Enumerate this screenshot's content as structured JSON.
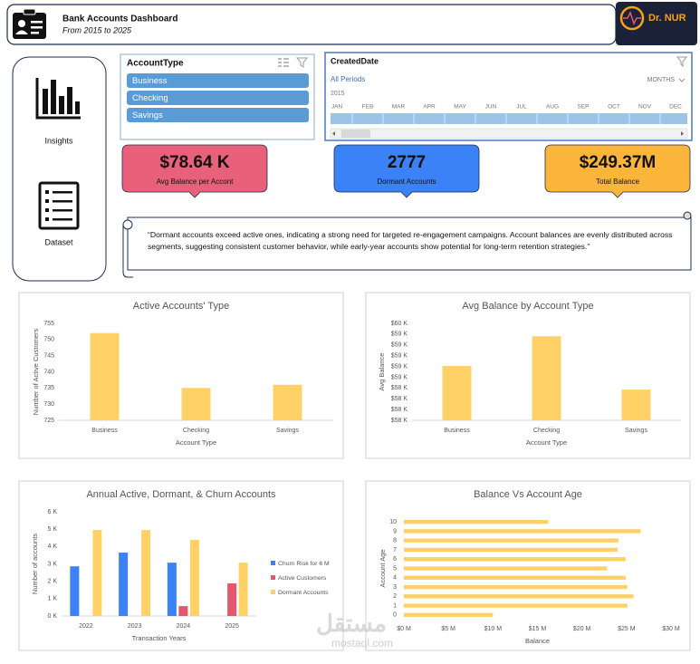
{
  "header": {
    "title": "Bank Accounts Dashboard",
    "subtitle": "From 2015 to 2025",
    "logo": "Dr. NUR"
  },
  "nav": {
    "items": [
      "Insights",
      "Dataset"
    ]
  },
  "slicer": {
    "title": "AccountType",
    "items": [
      "Business",
      "Checking",
      "Savings"
    ]
  },
  "timeline": {
    "title": "CreatedDate",
    "period": "All Periods",
    "level": "MONTHS",
    "year": "2015",
    "months": [
      "JAN",
      "FEB",
      "MAR",
      "APR",
      "MAY",
      "JUN",
      "JUL",
      "AUG",
      "SEP",
      "OCT",
      "NOV",
      "DEC"
    ]
  },
  "kpis": [
    {
      "value": "$78.64 K",
      "label": "Avg Balance per Accont",
      "color": "#e8607a"
    },
    {
      "value": "2777",
      "label": "Dormant Accounts",
      "color": "#3b82f6"
    },
    {
      "value": "$249.37M",
      "label": "Total Balance",
      "color": "#fbb53a"
    }
  ],
  "note": "“Dormant accounts exceed active ones, indicating a strong need for targeted re-engagement campaigns. Account balances are evenly distributed across segments, suggesting consistent customer behavior, while early-year accounts show potential for long-term retention strategies.”",
  "watermark": {
    "arabic": "مستقل",
    "site": "mostaql.com"
  },
  "chart_data": [
    {
      "type": "bar",
      "title": "Active Accounts' Type",
      "x_label": "Account Type",
      "y_label": "Number of Active Customers",
      "categories": [
        "Business",
        "Checking",
        "Savings"
      ],
      "values": [
        752,
        735,
        736
      ],
      "color": "#ffd166",
      "ylim": [
        725,
        755
      ],
      "yticks": [
        725,
        730,
        735,
        740,
        745,
        750,
        755
      ]
    },
    {
      "type": "bar",
      "title": "Avg Balance by Account Type",
      "x_label": "Account Type",
      "y_label": "Avg Balance",
      "categories": [
        "Business",
        "Checking",
        "Savings"
      ],
      "values": [
        58810,
        59360,
        58370
      ],
      "color": "#ffd166",
      "ylim": [
        57800,
        59600
      ],
      "yticks": [
        {
          "value": 57800,
          "label": "$58 K"
        },
        {
          "value": 58000,
          "label": "$58 K"
        },
        {
          "value": 58200,
          "label": "$58 K"
        },
        {
          "value": 58400,
          "label": "$58 K"
        },
        {
          "value": 58600,
          "label": "$59 K"
        },
        {
          "value": 58800,
          "label": "$59 K"
        },
        {
          "value": 59000,
          "label": "$59 K"
        },
        {
          "value": 59200,
          "label": "$59 K"
        },
        {
          "value": 59400,
          "label": "$59 K"
        },
        {
          "value": 59600,
          "label": "$60 K"
        }
      ]
    },
    {
      "type": "bar",
      "title": "Annual Active, Dormant, & Churn Accounts",
      "x_label": "Transaction Years",
      "y_label": "Number of accounts",
      "categories": [
        "2022",
        "2023",
        "2024",
        "2025"
      ],
      "series": [
        {
          "name": "Churn Risk for 6 M",
          "color": "#3b82f6",
          "values": [
            2860,
            3650,
            3070,
            null
          ]
        },
        {
          "name": "Active Customers",
          "color": "#e5566f",
          "values": [
            null,
            null,
            570,
            1880
          ]
        },
        {
          "name": "Dormant Accounts",
          "color": "#ffd166",
          "values": [
            4950,
            4950,
            4380,
            3070
          ]
        }
      ],
      "legend": "right",
      "ylim": [
        0,
        6000
      ],
      "yticks": [
        {
          "value": 0,
          "label": "0 K"
        },
        {
          "value": 1000,
          "label": "1 K"
        },
        {
          "value": 2000,
          "label": "2 K"
        },
        {
          "value": 3000,
          "label": "3 K"
        },
        {
          "value": 4000,
          "label": "4 K"
        },
        {
          "value": 5000,
          "label": "5 K"
        },
        {
          "value": 6000,
          "label": "6 K"
        }
      ]
    },
    {
      "type": "barh",
      "title": "Balance Vs Account Age",
      "x_label": "Balance",
      "y_label": "Account Age",
      "categories": [
        "0",
        "1",
        "2",
        "3",
        "4",
        "5",
        "6",
        "7",
        "8",
        "9",
        "10"
      ],
      "values": [
        10000000,
        25100000,
        25800000,
        25100000,
        24900000,
        22800000,
        24900000,
        24000000,
        24100000,
        26600000,
        16200000
      ],
      "color": "#ffd166",
      "xlim": [
        0,
        30000000
      ],
      "xticks": [
        {
          "value": 0,
          "label": "$0 M"
        },
        {
          "value": 5000000,
          "label": "$5 M"
        },
        {
          "value": 10000000,
          "label": "$10 M"
        },
        {
          "value": 15000000,
          "label": "$15 M"
        },
        {
          "value": 20000000,
          "label": "$20 M"
        },
        {
          "value": 25000000,
          "label": "$25 M"
        },
        {
          "value": 30000000,
          "label": "$30 M"
        }
      ]
    }
  ]
}
